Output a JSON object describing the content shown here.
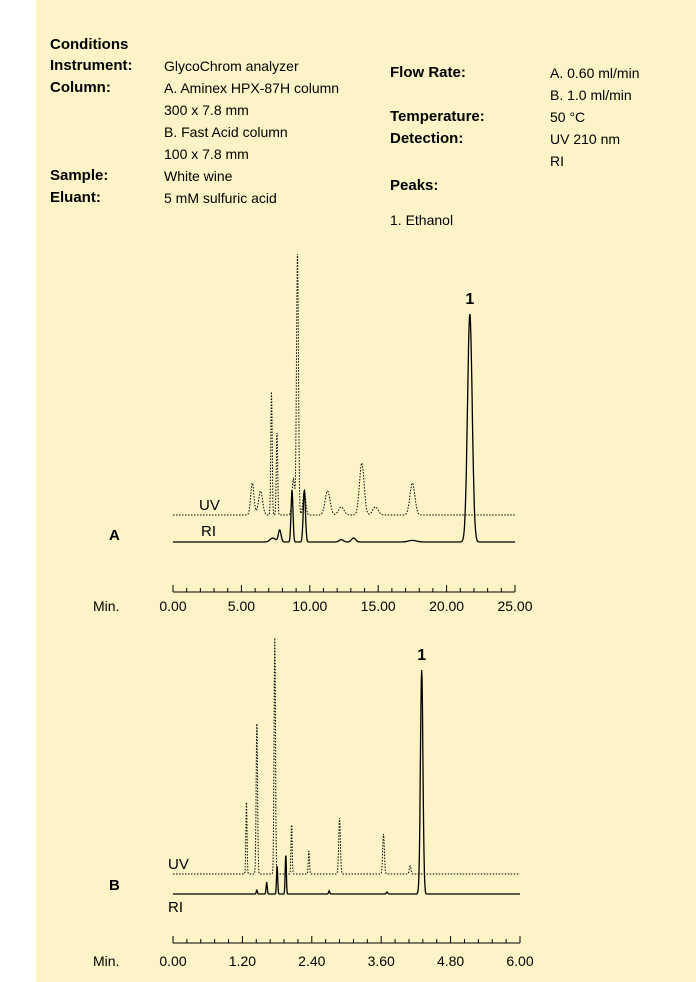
{
  "conditions": {
    "heading": "Conditions",
    "instrument_label": "Instrument:",
    "instrument": "GlycoChrom analyzer",
    "column_label": "Column:",
    "column_lines": [
      "A. Aminex HPX-87H column",
      "300 x 7.8 mm",
      "B. Fast Acid column",
      "100 x 7.8 mm"
    ],
    "sample_label": "Sample:",
    "sample": "White wine",
    "eluant_label": "Eluant:",
    "eluant": "5 mM sulfuric acid",
    "flow_label": "Flow Rate:",
    "flow_lines": [
      "A. 0.60 ml/min",
      "B. 1.0 ml/min"
    ],
    "temp_label": "Temperature:",
    "temperature": "50 °C",
    "detection_label": "Detection:",
    "detection_lines": [
      "UV  210 nm",
      "RI"
    ],
    "peaks_label": "Peaks:",
    "peaks": [
      "1.  Ethanol"
    ]
  },
  "chart_data": [
    {
      "type": "line",
      "panel_label": "A",
      "xlabel": "Min.",
      "xlim": [
        0,
        25
      ],
      "ticks": [
        "0.00",
        "5.00",
        "10.00",
        "15.00",
        "20.00",
        "25.00"
      ],
      "series": [
        {
          "name": "UV",
          "style": "dotted",
          "baseline": 0,
          "peaks": [
            [
              5.8,
              8,
              0.12
            ],
            [
              6.4,
              6,
              0.15
            ],
            [
              7.2,
              31,
              0.05
            ],
            [
              7.6,
              21,
              0.05
            ],
            [
              8.8,
              9,
              0.1
            ],
            [
              9.1,
              66,
              0.07
            ],
            [
              9.6,
              6,
              0.1
            ],
            [
              11.3,
              6,
              0.18
            ],
            [
              12.3,
              2,
              0.2
            ],
            [
              13.8,
              13,
              0.17
            ],
            [
              14.8,
              2,
              0.2
            ],
            [
              17.5,
              8,
              0.18
            ]
          ]
        },
        {
          "name": "RI",
          "style": "solid",
          "baseline": 0,
          "peaks": [
            [
              7.3,
              1,
              0.2
            ],
            [
              7.8,
              3,
              0.1
            ],
            [
              8.7,
              13,
              0.07
            ],
            [
              9.6,
              13,
              0.08
            ],
            [
              12.3,
              0.6,
              0.15
            ],
            [
              13.2,
              1,
              0.15
            ],
            [
              17.5,
              0.4,
              0.3
            ],
            [
              21.7,
              57,
              0.17
            ]
          ]
        }
      ],
      "annotations": [
        {
          "text": "1",
          "x": 21.7
        }
      ]
    },
    {
      "type": "line",
      "panel_label": "B",
      "xlabel": "Min.",
      "xlim": [
        0,
        6
      ],
      "ticks": [
        "0.00",
        "1.20",
        "2.40",
        "3.60",
        "4.80",
        "6.00"
      ],
      "series": [
        {
          "name": "UV",
          "style": "dotted",
          "baseline": 0,
          "peaks": [
            [
              1.27,
              19,
              0.04
            ],
            [
              1.45,
              39,
              0.05
            ],
            [
              1.76,
              59,
              0.05
            ],
            [
              2.05,
              13,
              0.04
            ],
            [
              2.35,
              6,
              0.04
            ],
            [
              2.88,
              14,
              0.06
            ],
            [
              3.64,
              10,
              0.06
            ],
            [
              4.1,
              2,
              0.06
            ]
          ]
        },
        {
          "name": "RI",
          "style": "solid",
          "baseline": 0,
          "peaks": [
            [
              1.45,
              1,
              0.04
            ],
            [
              1.62,
              3,
              0.04
            ],
            [
              1.8,
              7,
              0.04
            ],
            [
              1.95,
              10,
              0.04
            ],
            [
              2.7,
              0.8,
              0.04
            ],
            [
              3.7,
              0.5,
              0.05
            ],
            [
              4.3,
              56,
              0.09
            ]
          ]
        }
      ],
      "annotations": [
        {
          "text": "1",
          "x": 4.3
        }
      ]
    }
  ]
}
